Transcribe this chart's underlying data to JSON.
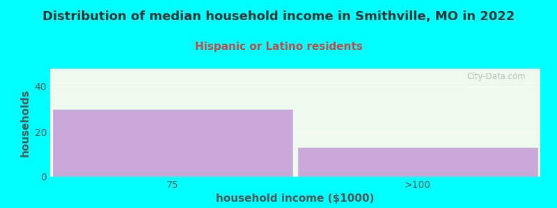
{
  "title": "Distribution of median household income in Smithville, MO in 2022",
  "subtitle": "Hispanic or Latino residents",
  "xlabel": "household income ($1000)",
  "ylabel": "households",
  "categories": [
    "75",
    ">100"
  ],
  "values": [
    30,
    13
  ],
  "ylim": [
    0,
    48
  ],
  "yticks": [
    0,
    20,
    40
  ],
  "bar_color": "#c8a8d8",
  "bg_color": "#00ffff",
  "plot_bg_color": "#edfaed",
  "title_color": "#333333",
  "subtitle_color": "#cc4444",
  "axis_color": "#555555",
  "watermark": "City-Data.com",
  "bar_width": 0.98,
  "title_fontsize": 13,
  "subtitle_fontsize": 11,
  "label_fontsize": 11,
  "tick_fontsize": 10
}
